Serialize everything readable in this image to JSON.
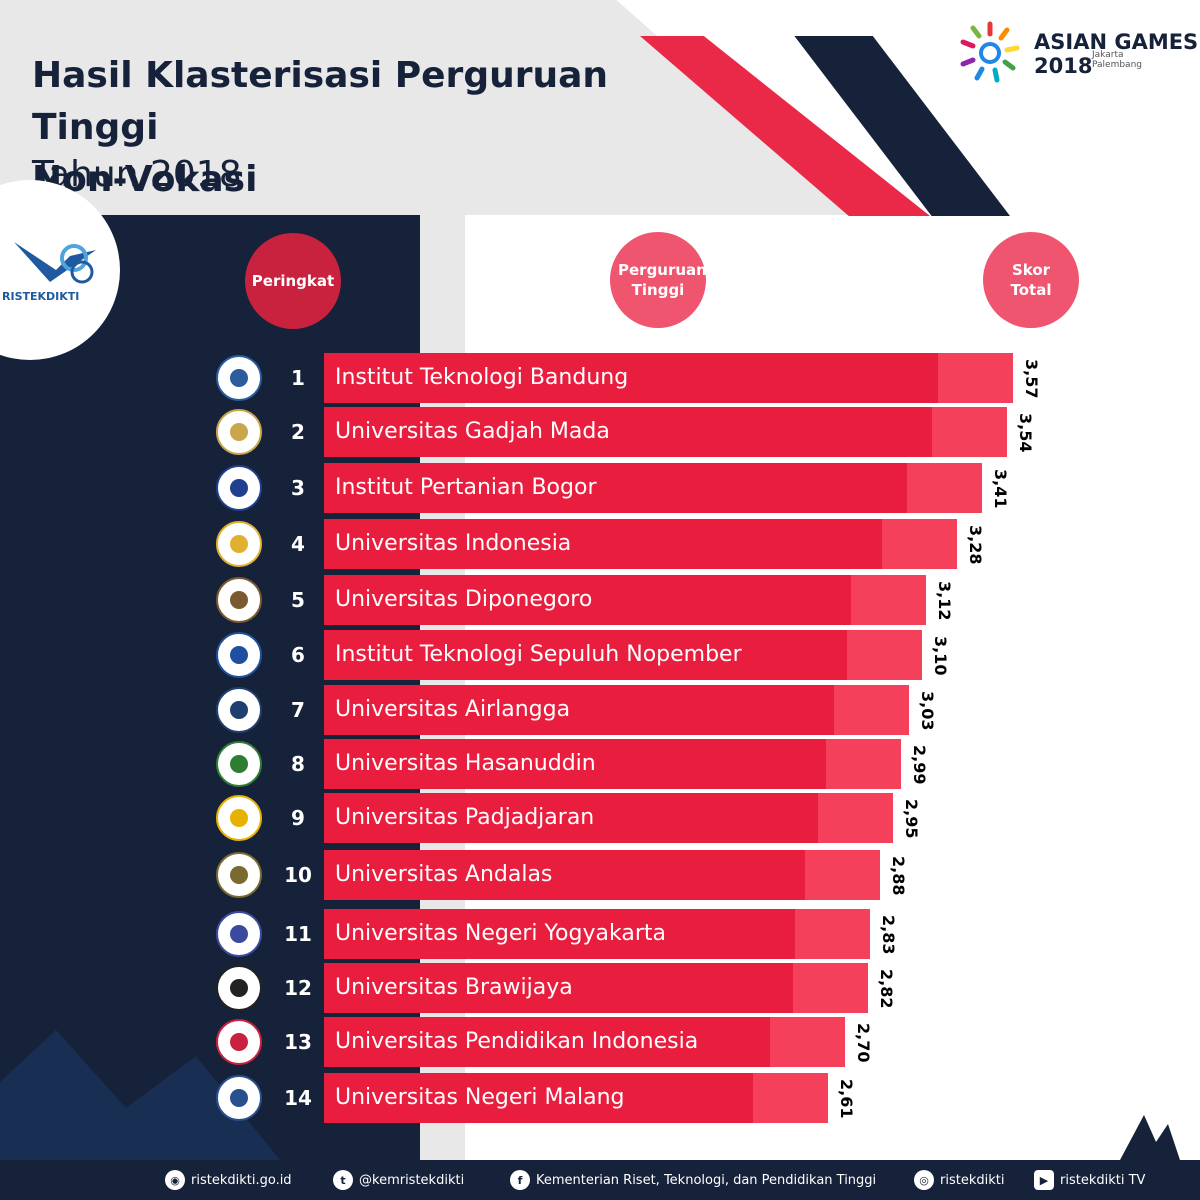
{
  "title": {
    "line1": "Hasil Klasterisasi Perguruan Tinggi",
    "line2": "Non-Vokasi",
    "subtitle": "Tahun 2018"
  },
  "branding": {
    "ristekdikti": "RISTEKDIKTI",
    "asian_games": "ASIAN GAMES",
    "asian_year": "2018",
    "asian_place_1": "Jakarta",
    "asian_place_2": "Palembang"
  },
  "headers": {
    "rank": "Peringkat",
    "university": "Perguruan Tinggi",
    "score": "Skor Total"
  },
  "colors": {
    "navy": "#16213a",
    "bar_main": "#e91e3f",
    "bar_light": "#f4405a",
    "header_circle": "#f0556f"
  },
  "chart_data": {
    "type": "bar",
    "orientation": "horizontal",
    "title": "Hasil Klasterisasi Perguruan Tinggi Non-Vokasi Tahun 2018",
    "ylabel": "Perguruan Tinggi",
    "xlabel": "Skor Total",
    "ranks": [
      1,
      2,
      3,
      4,
      5,
      6,
      7,
      8,
      9,
      10,
      11,
      12,
      13,
      14
    ],
    "categories": [
      "Institut Teknologi Bandung",
      "Universitas Gadjah Mada",
      "Institut Pertanian Bogor",
      "Universitas Indonesia",
      "Universitas Diponegoro",
      "Institut Teknologi Sepuluh Nopember",
      "Universitas Airlangga",
      "Universitas Hasanuddin",
      "Universitas Padjadjaran",
      "Universitas Andalas",
      "Universitas Negeri Yogyakarta",
      "Universitas Brawijaya",
      "Universitas Pendidikan Indonesia",
      "Universitas Negeri Malang"
    ],
    "values": [
      3.57,
      3.54,
      3.41,
      3.28,
      3.12,
      3.1,
      3.03,
      2.99,
      2.95,
      2.88,
      2.83,
      2.82,
      2.7,
      2.61
    ],
    "value_labels": [
      "3,57",
      "3,54",
      "3,41",
      "3,28",
      "3,12",
      "3,10",
      "3,03",
      "2,99",
      "2,95",
      "2,88",
      "2,83",
      "2,82",
      "2,70",
      "2,61"
    ]
  },
  "footer": {
    "website": "ristekdikti.go.id",
    "twitter": "@kemristekdikti",
    "facebook": "Kementerian Riset, Teknologi, dan Pendidikan Tinggi",
    "instagram": "ristekdikti",
    "youtube": "ristekdikti TV"
  }
}
